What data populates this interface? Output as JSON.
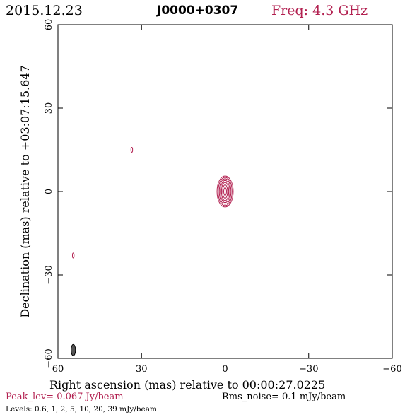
{
  "header": {
    "date": "2015.12.23",
    "source": "J0000+0307",
    "freq": "Freq: 4.3 GHz"
  },
  "footer": {
    "peak": "Peak_lev=  0.067 Jy/beam",
    "rms": "Rms_noise=  0.1 mJy/beam",
    "levels": "Levels: 0.6,   1,   2,   5,  10,  20,  39 mJy/beam"
  },
  "colors": {
    "contour": "#b22050",
    "beam": "#555555",
    "axes": "#000000"
  },
  "chart_data": {
    "type": "contour",
    "xlabel": "Right ascension (mas) relative to 00:00:27.0225",
    "ylabel": "Declination (mas) relative to +03:07:15.647",
    "xlim": [
      60,
      -60
    ],
    "ylim": [
      -60,
      60
    ],
    "x_ticks": [
      60,
      30,
      0,
      -30,
      -60
    ],
    "y_ticks": [
      60,
      30,
      0,
      -30,
      -60
    ],
    "x_tick_labels": [
      "60",
      "30",
      "0",
      "−30",
      "−60"
    ],
    "y_tick_labels": [
      "60",
      "30",
      "0",
      "−30",
      "−60"
    ],
    "levels_mJy": [
      0.6,
      1,
      2,
      5,
      10,
      20,
      39
    ],
    "peak_Jy_per_beam": 0.067,
    "rms_mJy_per_beam": 0.1,
    "main_component": {
      "ra": 0.0,
      "dec": 0.0,
      "contours": [
        {
          "level": 0.6,
          "a": 2.9,
          "b": 5.6
        },
        {
          "level": 1,
          "a": 2.5,
          "b": 5.1
        },
        {
          "level": 2,
          "a": 2.1,
          "b": 4.6
        },
        {
          "level": 5,
          "a": 1.7,
          "b": 4.0
        },
        {
          "level": 10,
          "a": 1.3,
          "b": 3.3
        },
        {
          "level": 20,
          "a": 0.9,
          "b": 2.4
        },
        {
          "level": 39,
          "a": 0.5,
          "b": 1.4
        }
      ]
    },
    "minor_components": [
      {
        "ra": 33.5,
        "dec": 15.0,
        "a": 0.3,
        "b": 0.9
      },
      {
        "ra": 54.5,
        "dec": -23.0,
        "a": 0.3,
        "b": 0.9
      }
    ],
    "beam": {
      "ra": 54.5,
      "dec": -57.0,
      "a": 0.8,
      "b": 2.0
    }
  }
}
